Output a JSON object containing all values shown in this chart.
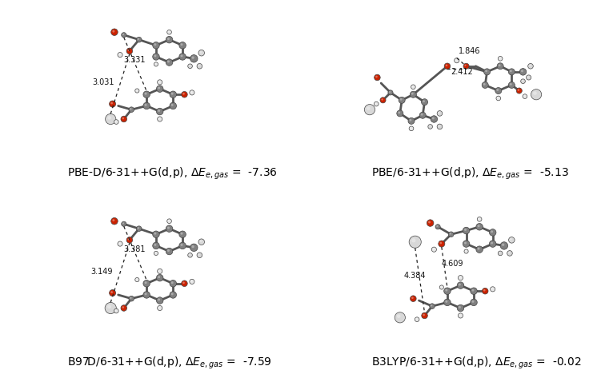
{
  "background_color": "#ffffff",
  "panels": [
    {
      "id": "top_left",
      "method": "PBE-D/6-31++G(d,p)",
      "energy_value": " =  -7.36",
      "dist1": "3.031",
      "dist2": "3.331"
    },
    {
      "id": "top_right",
      "method": "PBE/6-31++G(d,p)",
      "energy_value": " =  -5.13",
      "dist1": "1.846",
      "dist2": "2.412"
    },
    {
      "id": "bot_left",
      "method": "B97D/6-31++G(d,p)",
      "energy_value": " =  -7.59",
      "dist1": "3.149",
      "dist2": "3.381"
    },
    {
      "id": "bot_right",
      "method": "B3LYP/6-31++G(d,p)",
      "energy_value": " =  -0.02",
      "dist1": "4.384",
      "dist2": "4.609"
    }
  ],
  "atom_colors": {
    "C": "#808080",
    "O": "#cc2200",
    "H": "#e8e8e8",
    "H_large": "#d8d8d8"
  },
  "label_fontsize": 10,
  "dist_fontsize": 7
}
